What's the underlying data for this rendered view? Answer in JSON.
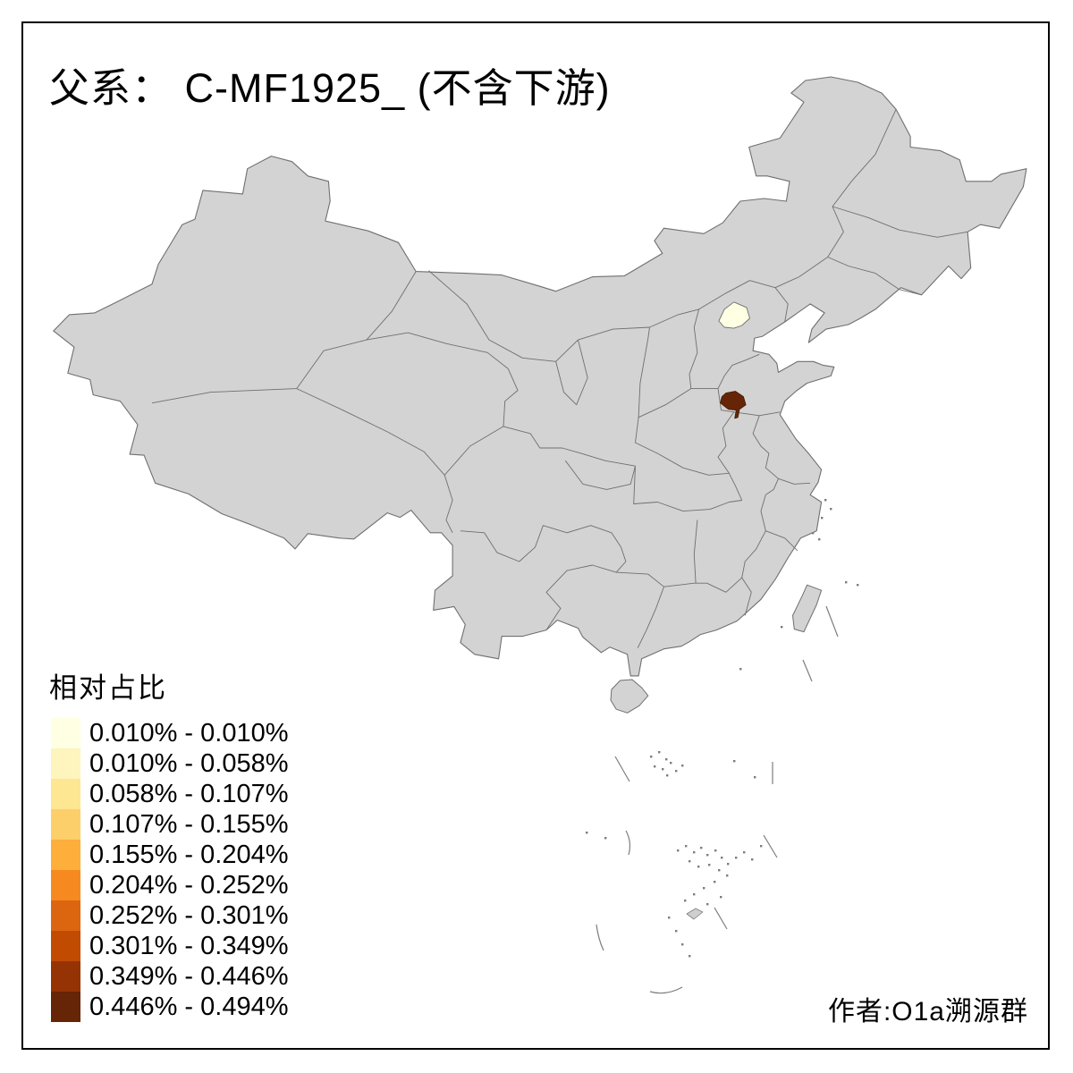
{
  "title": "父系： C-MF1925_ (不含下游)",
  "legend": {
    "title": "相对占比",
    "classes": [
      {
        "range": "0.010% - 0.010%",
        "color": "#FFFFE3"
      },
      {
        "range": "0.010% - 0.058%",
        "color": "#FDF5BD"
      },
      {
        "range": "0.058% - 0.107%",
        "color": "#FEE793"
      },
      {
        "range": "0.107% - 0.155%",
        "color": "#FDCF6B"
      },
      {
        "range": "0.155% - 0.204%",
        "color": "#FDAE3B"
      },
      {
        "range": "0.204% - 0.252%",
        "color": "#F68A21"
      },
      {
        "range": "0.252% - 0.301%",
        "color": "#DC660F"
      },
      {
        "range": "0.301% - 0.349%",
        "color": "#C24B02"
      },
      {
        "range": "0.349% - 0.446%",
        "color": "#953304"
      },
      {
        "range": "0.446% - 0.494%",
        "color": "#662506"
      }
    ]
  },
  "credit": "作者:O1a溯源群",
  "map": {
    "base_region_fill": "#D3D3D3",
    "region_border_color": "#6F6F6F",
    "sea_fill": "#FFFFFF",
    "frame_color": "#000000",
    "island_mark_color": "#7D7D7D",
    "highlighted_regions": [
      {
        "id": "region-highlight-light",
        "legend_class": "0.010% - 0.010%",
        "color": "#FFFFE3"
      },
      {
        "id": "region-highlight-dark",
        "legend_class": "0.446% - 0.494%",
        "color": "#662506"
      }
    ]
  }
}
